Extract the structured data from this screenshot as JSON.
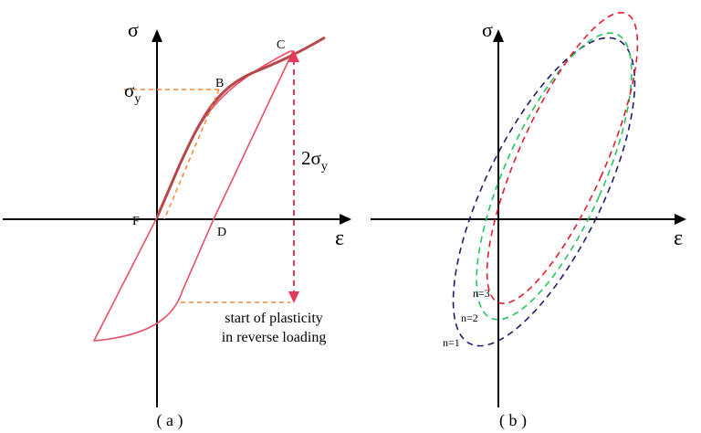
{
  "panel_a": {
    "caption": "( a )",
    "axis_y_label": "σ",
    "axis_x_label": "ε",
    "point_b": "B",
    "point_c": "C",
    "point_d": "D",
    "point_f": "F",
    "sigma_y_main": "σ",
    "sigma_y_sub": "y",
    "two_sigma_main": "2σ",
    "two_sigma_sub": "y",
    "annotation_line1": "start of plasticity",
    "annotation_line2": "in reverse loading"
  },
  "panel_b": {
    "caption": "( b )",
    "axis_y_label": "σ",
    "axis_x_label": "ε",
    "loops": [
      {
        "label": "n=1",
        "color": "#1f1f6b"
      },
      {
        "label": "n=2",
        "color": "#22c55e"
      },
      {
        "label": "n=3",
        "color": "#e11d2e"
      }
    ]
  },
  "colors": {
    "loading_curve": "#b5484b",
    "cycle_curve": "#e8506a",
    "yield_guides": "#f0883a",
    "double_arrow": "#e8385a"
  }
}
